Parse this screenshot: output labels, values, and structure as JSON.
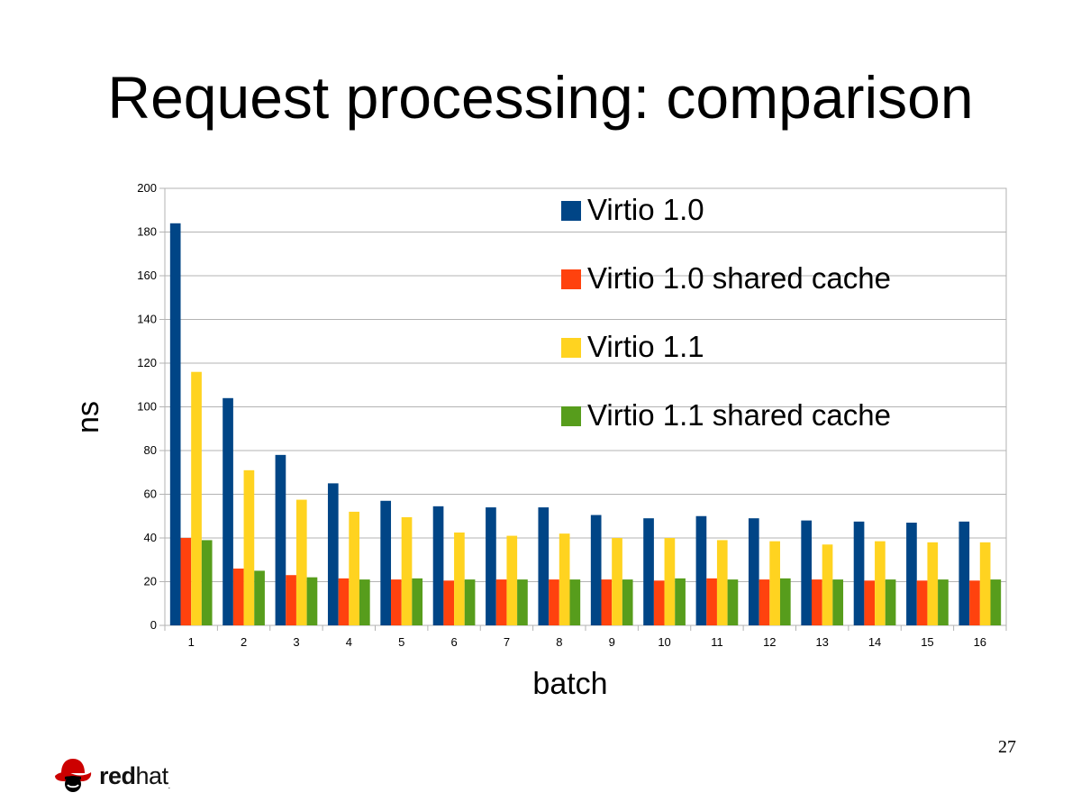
{
  "slide": {
    "title": "Request processing: comparison",
    "page_number": "27"
  },
  "logo": {
    "brand": "redhat",
    "red_part": "red",
    "hat_part": "hat",
    "trademark": ".",
    "icon": "red-hat-shadowman-icon",
    "color": "#cc0000"
  },
  "chart_data": {
    "type": "bar",
    "title": "",
    "xlabel": "batch",
    "ylabel": "ns",
    "ylim": [
      0,
      200
    ],
    "yticks": [
      0,
      20,
      40,
      60,
      80,
      100,
      120,
      140,
      160,
      180,
      200
    ],
    "grid": true,
    "legend_position": "top-right",
    "categories": [
      "1",
      "2",
      "3",
      "4",
      "5",
      "6",
      "7",
      "8",
      "9",
      "10",
      "11",
      "12",
      "13",
      "14",
      "15",
      "16"
    ],
    "series": [
      {
        "name": "Virtio 1.0",
        "color": "#004586",
        "values": [
          184,
          104,
          78,
          65,
          57,
          54.5,
          54,
          54,
          50.5,
          49,
          50,
          49,
          48,
          47.5,
          47,
          47.5
        ]
      },
      {
        "name": "Virtio 1.0 shared cache",
        "color": "#ff420e",
        "values": [
          40,
          26,
          23,
          21.5,
          21,
          20.5,
          21,
          21,
          21,
          20.5,
          21.5,
          21,
          21,
          20.5,
          20.5,
          20.5
        ]
      },
      {
        "name": "Virtio 1.1",
        "color": "#ffd320",
        "values": [
          116,
          71,
          57.5,
          52,
          49.5,
          42.5,
          41,
          42,
          40,
          40,
          39,
          38.5,
          37,
          38.5,
          38,
          38
        ]
      },
      {
        "name": "Virtio 1.1 shared cache",
        "color": "#579d1c",
        "values": [
          39,
          25,
          22,
          21,
          21.5,
          21,
          21,
          21,
          21,
          21.5,
          21,
          21.5,
          21,
          21,
          21,
          21
        ]
      }
    ]
  }
}
